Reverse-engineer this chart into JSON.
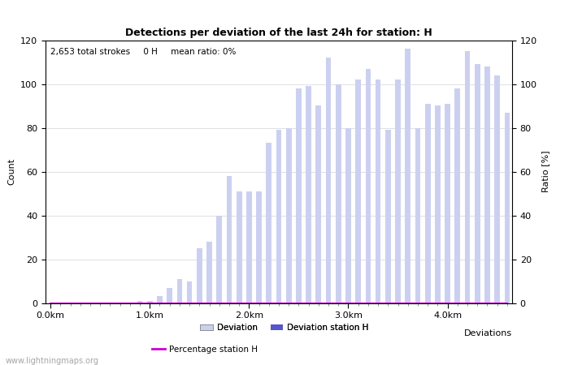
{
  "title": "Detections per deviation of the last 24h for station: H",
  "subtitle": "2,653 total strokes     0 H     mean ratio: 0%",
  "xlabel": "Deviations",
  "ylabel_left": "Count",
  "ylabel_right": "Ratio [%]",
  "ylim": [
    0,
    120
  ],
  "x_tick_labels": [
    "0.0km",
    "1.0km",
    "2.0km",
    "3.0km",
    "4.0km"
  ],
  "watermark": "www.lightningmaps.org",
  "bar_color_light": "#ccd0f0",
  "bar_color_dark": "#5555cc",
  "line_color": "#cc00cc",
  "bar_values": [
    0,
    0,
    0,
    0,
    0,
    0,
    0,
    0,
    0,
    1,
    1,
    3,
    7,
    11,
    10,
    25,
    28,
    40,
    58,
    51,
    51,
    51,
    73,
    79,
    80,
    98,
    99,
    90,
    112,
    100,
    80,
    102,
    107,
    102,
    79,
    102,
    116,
    80,
    91,
    90,
    91,
    98,
    115,
    109,
    108,
    104,
    87
  ],
  "station_bar_values": [
    0,
    0,
    0,
    0,
    0,
    0,
    0,
    0,
    0,
    0,
    0,
    0,
    0,
    0,
    0,
    0,
    0,
    0,
    0,
    0,
    0,
    0,
    0,
    0,
    0,
    0,
    0,
    0,
    0,
    0,
    0,
    0,
    0,
    0,
    0,
    0,
    0,
    0,
    0,
    0,
    0,
    0,
    0,
    0,
    0,
    0,
    0
  ],
  "ratio_values": [
    0,
    0,
    0,
    0,
    0,
    0,
    0,
    0,
    0,
    0,
    0,
    0,
    0,
    0,
    0,
    0,
    0,
    0,
    0,
    0,
    0,
    0,
    0,
    0,
    0,
    0,
    0,
    0,
    0,
    0,
    0,
    0,
    0,
    0,
    0,
    0,
    0,
    0,
    0,
    0,
    0,
    0,
    0,
    0,
    0,
    0,
    0
  ],
  "fig_width": 7.0,
  "fig_height": 4.5,
  "dpi": 100,
  "title_fontsize": 9,
  "axis_fontsize": 8,
  "subtitle_fontsize": 7.5,
  "watermark_fontsize": 7,
  "legend_fontsize": 7.5,
  "ytick_interval": 20
}
